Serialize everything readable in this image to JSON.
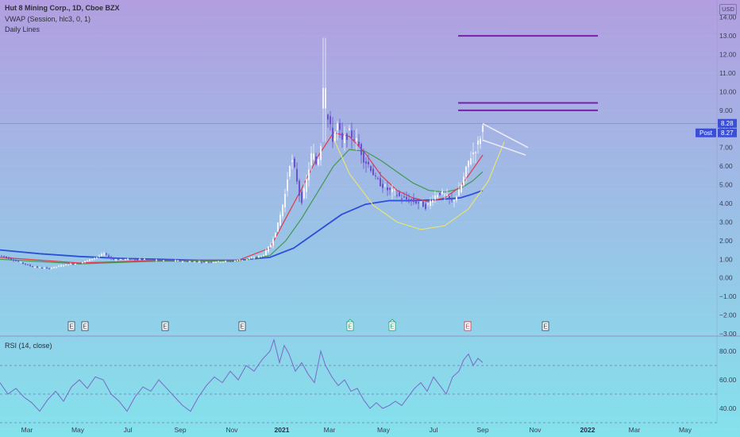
{
  "header": {
    "title": "Hut 8 Mining Corp., 1D, Cboe BZX",
    "indicator_vwap": "VWAP (Session, hlc3, 0, 1)",
    "indicator_daily": "Daily Lines",
    "currency": "USD"
  },
  "price_tags": {
    "last": "8.28",
    "post_label": "Post",
    "post": "8.27"
  },
  "rsi_panel": {
    "label": "RSI (14, close)",
    "y_ticks": [
      "80.00",
      "60.00",
      "40.00"
    ]
  },
  "earnings_marker": "E",
  "colors": {
    "background_top": "#b29ee0",
    "background_bottom": "#84e2ec",
    "ma_fast": "#e23a4a",
    "ma_mid": "#3f9a4e",
    "ma_slow": "#2c4fd8",
    "resistance": "#7a1fa8",
    "pattern": "#eaeaf6",
    "cup": "#e6e470",
    "rsi": "#7b68c8"
  },
  "chart_data": {
    "type": "candlestick",
    "ylim": [
      -3,
      14.5
    ],
    "y_ticks": [
      "14.00",
      "13.00",
      "12.00",
      "11.00",
      "10.00",
      "9.00",
      "8.00",
      "7.00",
      "6.00",
      "5.00",
      "4.00",
      "3.00",
      "2.00",
      "1.00",
      "0.00",
      "−1.00",
      "−2.00",
      "−3.00"
    ],
    "x_ticks": [
      "Mar",
      "May",
      "Jul",
      "Sep",
      "Nov",
      "2021",
      "Mar",
      "May",
      "Jul",
      "Sep",
      "Nov",
      "2022",
      "Mar",
      "May"
    ],
    "price_path": [
      [
        0,
        1.2
      ],
      [
        20,
        0.9
      ],
      [
        40,
        0.6
      ],
      [
        60,
        0.5
      ],
      [
        80,
        0.7
      ],
      [
        100,
        0.8
      ],
      [
        120,
        1.1
      ],
      [
        130,
        1.3
      ],
      [
        140,
        1.0
      ],
      [
        160,
        1.0
      ],
      [
        180,
        1.0
      ],
      [
        200,
        0.95
      ],
      [
        230,
        0.9
      ],
      [
        260,
        0.85
      ],
      [
        290,
        0.9
      ],
      [
        310,
        1.0
      ],
      [
        330,
        1.2
      ],
      [
        340,
        1.8
      ],
      [
        350,
        3.0
      ],
      [
        358,
        4.5
      ],
      [
        365,
        6.5
      ],
      [
        372,
        5.5
      ],
      [
        378,
        4.0
      ],
      [
        384,
        5.0
      ],
      [
        392,
        6.8
      ],
      [
        398,
        6.0
      ],
      [
        404,
        7.5
      ],
      [
        408,
        9.0
      ],
      [
        412,
        8.5
      ],
      [
        418,
        7.5
      ],
      [
        424,
        8.2
      ],
      [
        430,
        7.3
      ],
      [
        438,
        7.8
      ],
      [
        446,
        7.5
      ],
      [
        452,
        7.0
      ],
      [
        458,
        6.3
      ],
      [
        465,
        6.0
      ],
      [
        472,
        5.3
      ],
      [
        480,
        5.0
      ],
      [
        488,
        4.7
      ],
      [
        496,
        4.6
      ],
      [
        504,
        4.3
      ],
      [
        512,
        4.2
      ],
      [
        520,
        4.1
      ],
      [
        528,
        4.0
      ],
      [
        536,
        3.8
      ],
      [
        544,
        4.3
      ],
      [
        552,
        4.6
      ],
      [
        560,
        4.4
      ],
      [
        568,
        4.1
      ],
      [
        576,
        4.5
      ],
      [
        584,
        5.5
      ],
      [
        590,
        6.4
      ],
      [
        596,
        6.8
      ],
      [
        602,
        7.3
      ],
      [
        608,
        8.28
      ]
    ],
    "price_extremes": {
      "spike_high": 12.9,
      "spike_low": 7.3
    },
    "ma_fast": [
      [
        0,
        1.1
      ],
      [
        100,
        0.8
      ],
      [
        200,
        0.95
      ],
      [
        300,
        0.95
      ],
      [
        340,
        1.6
      ],
      [
        360,
        3.2
      ],
      [
        380,
        4.8
      ],
      [
        400,
        6.5
      ],
      [
        420,
        7.8
      ],
      [
        440,
        7.6
      ],
      [
        460,
        6.7
      ],
      [
        480,
        5.5
      ],
      [
        500,
        4.7
      ],
      [
        520,
        4.3
      ],
      [
        540,
        4.1
      ],
      [
        560,
        4.3
      ],
      [
        580,
        4.9
      ],
      [
        595,
        5.8
      ],
      [
        608,
        6.6
      ]
    ],
    "ma_mid": [
      [
        0,
        1.0
      ],
      [
        100,
        0.75
      ],
      [
        200,
        0.9
      ],
      [
        300,
        0.9
      ],
      [
        340,
        1.2
      ],
      [
        360,
        2.0
      ],
      [
        380,
        3.2
      ],
      [
        400,
        4.6
      ],
      [
        420,
        6.0
      ],
      [
        440,
        6.9
      ],
      [
        460,
        6.8
      ],
      [
        480,
        6.3
      ],
      [
        500,
        5.7
      ],
      [
        520,
        5.1
      ],
      [
        540,
        4.7
      ],
      [
        560,
        4.6
      ],
      [
        580,
        4.8
      ],
      [
        595,
        5.2
      ],
      [
        608,
        5.7
      ]
    ],
    "ma_slow": [
      [
        0,
        1.5
      ],
      [
        50,
        1.3
      ],
      [
        100,
        1.15
      ],
      [
        150,
        1.05
      ],
      [
        200,
        1.0
      ],
      [
        250,
        0.95
      ],
      [
        300,
        0.95
      ],
      [
        340,
        1.1
      ],
      [
        370,
        1.6
      ],
      [
        400,
        2.5
      ],
      [
        430,
        3.4
      ],
      [
        460,
        3.95
      ],
      [
        490,
        4.15
      ],
      [
        520,
        4.15
      ],
      [
        550,
        4.2
      ],
      [
        580,
        4.3
      ],
      [
        595,
        4.5
      ],
      [
        608,
        4.7
      ]
    ],
    "cup": [
      [
        420,
        7.5
      ],
      [
        440,
        5.6
      ],
      [
        470,
        3.9
      ],
      [
        500,
        3.0
      ],
      [
        530,
        2.6
      ],
      [
        560,
        2.8
      ],
      [
        590,
        3.7
      ],
      [
        615,
        5.2
      ],
      [
        635,
        7.3
      ]
    ],
    "resistance_levels": [
      {
        "y": 13.0,
        "x1": 577,
        "x2": 753
      },
      {
        "y": 9.4,
        "x1": 577,
        "x2": 753
      },
      {
        "y": 9.0,
        "x1": 577,
        "x2": 753
      }
    ],
    "pattern_lines": [
      [
        [
          608,
          8.28
        ],
        [
          665,
          7.0
        ]
      ],
      [
        [
          608,
          7.4
        ],
        [
          662,
          6.6
        ]
      ]
    ],
    "last_price_line": 8.28,
    "earnings_positions": [
      [
        90,
        "normal"
      ],
      [
        107,
        "normal"
      ],
      [
        208,
        "normal"
      ],
      [
        305,
        "normal"
      ],
      [
        441,
        "up"
      ],
      [
        494,
        "up"
      ],
      [
        589,
        "down"
      ],
      [
        687,
        "normal"
      ]
    ],
    "rsi": {
      "ylim": [
        30,
        90
      ],
      "bands": [
        70,
        50,
        30
      ],
      "series": [
        [
          0,
          58
        ],
        [
          10,
          50
        ],
        [
          20,
          54
        ],
        [
          30,
          48
        ],
        [
          40,
          44
        ],
        [
          50,
          38
        ],
        [
          60,
          46
        ],
        [
          70,
          52
        ],
        [
          80,
          45
        ],
        [
          90,
          55
        ],
        [
          100,
          60
        ],
        [
          110,
          54
        ],
        [
          120,
          62
        ],
        [
          130,
          60
        ],
        [
          140,
          50
        ],
        [
          150,
          45
        ],
        [
          160,
          38
        ],
        [
          170,
          48
        ],
        [
          180,
          55
        ],
        [
          190,
          52
        ],
        [
          200,
          60
        ],
        [
          210,
          54
        ],
        [
          220,
          48
        ],
        [
          230,
          42
        ],
        [
          240,
          38
        ],
        [
          250,
          48
        ],
        [
          260,
          56
        ],
        [
          270,
          62
        ],
        [
          280,
          58
        ],
        [
          290,
          66
        ],
        [
          300,
          60
        ],
        [
          310,
          70
        ],
        [
          320,
          66
        ],
        [
          330,
          74
        ],
        [
          340,
          80
        ],
        [
          345,
          88
        ],
        [
          352,
          72
        ],
        [
          358,
          84
        ],
        [
          364,
          78
        ],
        [
          372,
          66
        ],
        [
          380,
          72
        ],
        [
          388,
          64
        ],
        [
          396,
          58
        ],
        [
          404,
          80
        ],
        [
          410,
          70
        ],
        [
          418,
          62
        ],
        [
          426,
          56
        ],
        [
          434,
          60
        ],
        [
          442,
          52
        ],
        [
          450,
          54
        ],
        [
          458,
          46
        ],
        [
          466,
          40
        ],
        [
          474,
          44
        ],
        [
          482,
          40
        ],
        [
          490,
          42
        ],
        [
          498,
          45
        ],
        [
          506,
          42
        ],
        [
          514,
          48
        ],
        [
          522,
          54
        ],
        [
          530,
          58
        ],
        [
          538,
          52
        ],
        [
          546,
          62
        ],
        [
          554,
          56
        ],
        [
          562,
          50
        ],
        [
          570,
          62
        ],
        [
          578,
          66
        ],
        [
          584,
          74
        ],
        [
          590,
          78
        ],
        [
          596,
          70
        ],
        [
          602,
          75
        ],
        [
          608,
          72
        ]
      ]
    }
  }
}
